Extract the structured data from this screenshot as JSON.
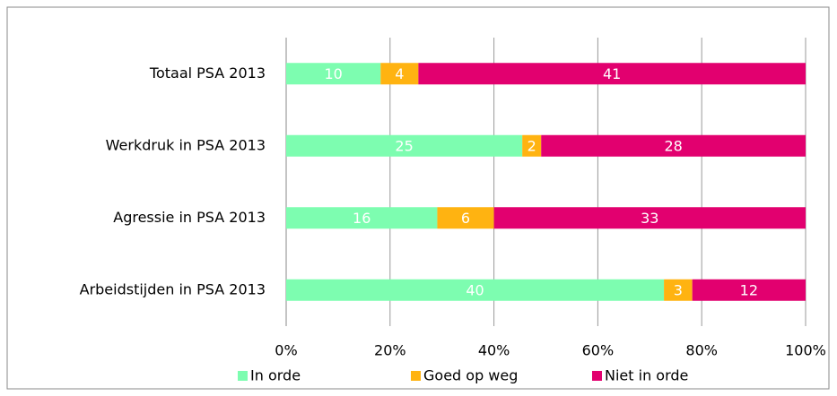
{
  "chart_data": {
    "type": "bar",
    "orientation": "horizontal",
    "stacking": "percent",
    "categories": [
      "Totaal PSA 2013",
      "Werkdruk in PSA 2013",
      "Agressie in PSA 2013",
      "Arbeidstijden in PSA 2013"
    ],
    "series": [
      {
        "name": "In orde",
        "color": "#7dfdb0",
        "values": [
          10,
          25,
          16,
          40
        ]
      },
      {
        "name": "Goed op weg",
        "color": "#ffb311",
        "values": [
          4,
          2,
          6,
          3
        ]
      },
      {
        "name": "Niet in orde",
        "color": "#e2006f",
        "values": [
          41,
          28,
          33,
          12
        ]
      }
    ],
    "xlim": [
      0,
      100
    ],
    "xticks": [
      {
        "value": 0,
        "label": "0%"
      },
      {
        "value": 20,
        "label": "20%"
      },
      {
        "value": 40,
        "label": "40%"
      },
      {
        "value": 60,
        "label": "60%"
      },
      {
        "value": 80,
        "label": "80%"
      },
      {
        "value": 100,
        "label": "100%"
      }
    ],
    "grid": true,
    "legend": "bottom"
  }
}
